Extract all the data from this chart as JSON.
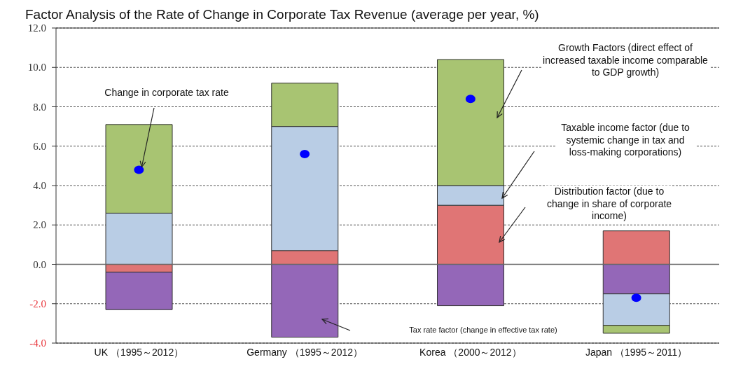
{
  "chart_data": {
    "type": "bar",
    "title": "Factor Analysis of the Rate of Change in Corporate Tax Revenue (average per year, %)",
    "categories": [
      "UK （1995～2012）",
      "Germany （1995～2012）",
      "Korea （2000～2012）",
      "Japan （1995～2011）"
    ],
    "stacked": true,
    "series": [
      {
        "color": "#e07575",
        "values": [
          -0.4,
          0.7,
          3.0,
          1.7
        ]
      },
      {
        "color": "#9467b8",
        "values": [
          -1.9,
          -3.7,
          -2.1,
          -1.5
        ]
      },
      {
        "color": "#b9cde5",
        "values": [
          2.6,
          6.3,
          1.0,
          -1.6
        ]
      },
      {
        "color": "#a8c472",
        "values": [
          4.5,
          2.2,
          6.4,
          -0.4
        ]
      },
      {
        "type": "scatter",
        "color": "#0000ff",
        "marker": "circle",
        "x": [
          "UK （1995～2012）",
          "Germany （1995～2012）",
          "Korea （2000～2012）",
          "Japan （1995～2011）"
        ],
        "values": [
          4.8,
          5.6,
          8.4,
          -1.7
        ]
      }
    ],
    "ylim": [
      -4,
      12
    ],
    "yticks": [
      {
        "value": -4,
        "label": "-4.0"
      },
      {
        "value": -2,
        "label": "-2.0"
      },
      {
        "value": 0,
        "label": "0.0"
      },
      {
        "value": 2,
        "label": "2.0"
      },
      {
        "value": 4,
        "label": "4.0"
      },
      {
        "value": 6,
        "label": "6.0"
      },
      {
        "value": 8,
        "label": "8.0"
      },
      {
        "value": 10,
        "label": "10.0"
      },
      {
        "value": 12,
        "label": "12.0"
      }
    ],
    "grid": "y",
    "annotations": [
      {
        "text": "Change in corporate tax rate",
        "x": "UK （1995～2012）",
        "y": 4.8
      },
      "Growth Factors (direct effect of increased taxable income comparable to GDP growth)",
      "Taxable income factor (due to systemic change in tax and loss-making corporations)",
      "Distribution factor (due to change in share of corporate income)",
      "Tax rate factor (change in effective tax rate)"
    ]
  }
}
